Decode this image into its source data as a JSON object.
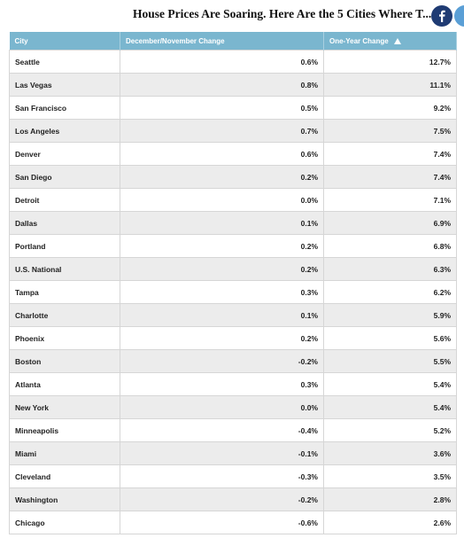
{
  "header": {
    "title": "House Prices Are Soaring. Here Are the 5 Cities Where T..."
  },
  "table": {
    "columns": [
      "City",
      "December/November Change",
      "One-Year Change"
    ],
    "rows": [
      [
        "Seattle",
        "0.6%",
        "12.7%"
      ],
      [
        "Las Vegas",
        "0.8%",
        "11.1%"
      ],
      [
        "San Francisco",
        "0.5%",
        "9.2%"
      ],
      [
        "Los Angeles",
        "0.7%",
        "7.5%"
      ],
      [
        "Denver",
        "0.6%",
        "7.4%"
      ],
      [
        "San Diego",
        "0.2%",
        "7.4%"
      ],
      [
        "Detroit",
        "0.0%",
        "7.1%"
      ],
      [
        "Dallas",
        "0.1%",
        "6.9%"
      ],
      [
        "Portland",
        "0.2%",
        "6.8%"
      ],
      [
        "U.S. National",
        "0.2%",
        "6.3%"
      ],
      [
        "Tampa",
        "0.3%",
        "6.2%"
      ],
      [
        "Charlotte",
        "0.1%",
        "5.9%"
      ],
      [
        "Phoenix",
        "0.2%",
        "5.6%"
      ],
      [
        "Boston",
        "-0.2%",
        "5.5%"
      ],
      [
        "Atlanta",
        "0.3%",
        "5.4%"
      ],
      [
        "New York",
        "0.0%",
        "5.4%"
      ],
      [
        "Minneapolis",
        "-0.4%",
        "5.2%"
      ],
      [
        "Miami",
        "-0.1%",
        "3.6%"
      ],
      [
        "Cleveland",
        "-0.3%",
        "3.5%"
      ],
      [
        "Washington",
        "-0.2%",
        "2.8%"
      ],
      [
        "Chicago",
        "-0.6%",
        "2.6%"
      ]
    ]
  }
}
